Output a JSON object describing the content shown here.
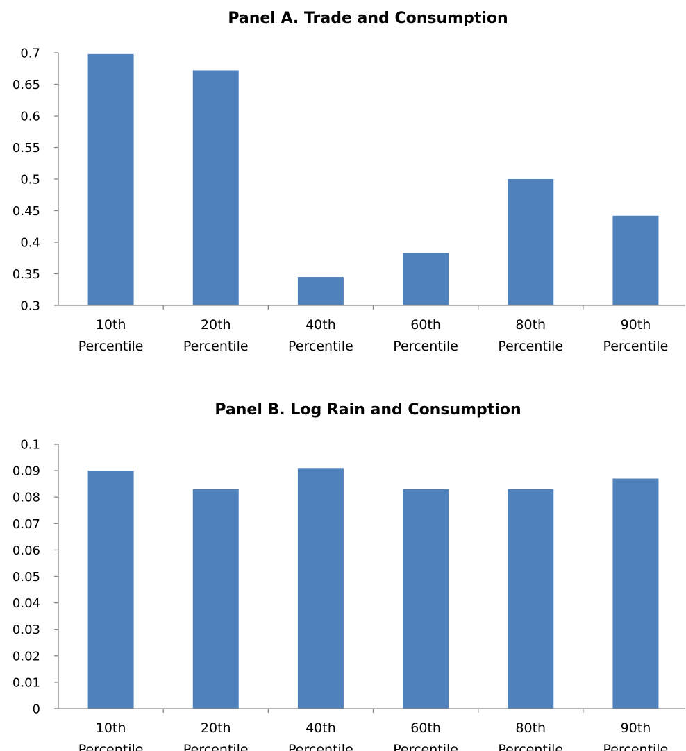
{
  "chart_data": [
    {
      "type": "bar",
      "title": "Panel A. Trade and Consumption",
      "xlabel": "",
      "ylabel": "",
      "categories": [
        [
          "10th",
          "Percentile"
        ],
        [
          "20th",
          "Percentile"
        ],
        [
          "40th",
          "Percentile"
        ],
        [
          "60th",
          "Percentile"
        ],
        [
          "80th",
          "Percentile"
        ],
        [
          "90th",
          "Percentile"
        ]
      ],
      "values": [
        0.698,
        0.672,
        0.345,
        0.383,
        0.5,
        0.442
      ],
      "ylim": [
        0.3,
        0.7
      ],
      "yticks": [
        "0.3",
        "0.35",
        "0.4",
        "0.45",
        "0.5",
        "0.55",
        "0.6",
        "0.65",
        "0.7"
      ],
      "bar_color": "#4f81bd",
      "grid": false,
      "legend": "none"
    },
    {
      "type": "bar",
      "title": "Panel B. Log Rain and Consumption",
      "xlabel": "",
      "ylabel": "",
      "categories": [
        [
          "10th",
          "Percentile"
        ],
        [
          "20th",
          "Percentile"
        ],
        [
          "40th",
          "Percentile"
        ],
        [
          "60th",
          "Percentile"
        ],
        [
          "80th",
          "Percentile"
        ],
        [
          "90th",
          "Percentile"
        ]
      ],
      "values": [
        0.09,
        0.083,
        0.091,
        0.083,
        0.083,
        0.087
      ],
      "ylim": [
        0,
        0.1
      ],
      "yticks": [
        "0",
        "0.01",
        "0.02",
        "0.03",
        "0.04",
        "0.05",
        "0.06",
        "0.07",
        "0.08",
        "0.09",
        "0.1"
      ],
      "bar_color": "#4f81bd",
      "grid": false,
      "legend": "none"
    }
  ]
}
